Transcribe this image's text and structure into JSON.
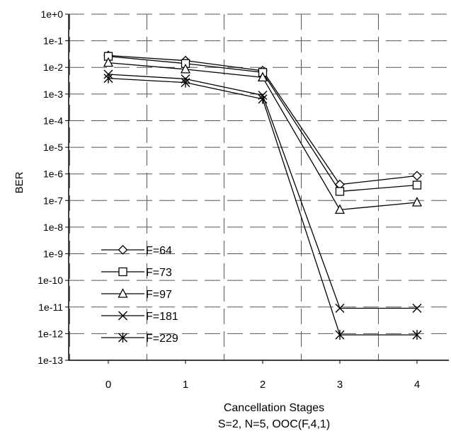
{
  "chart_data": {
    "type": "line",
    "title": "",
    "xlabel": "Cancellation Stages",
    "xlabel_sub": "S=2, N=5, OOC(F,4,1)",
    "ylabel": "BER",
    "y_scale": "log",
    "ylim": [
      1e-13,
      1
    ],
    "y_ticks": [
      "1e+0",
      "1e-1",
      "1e-2",
      "1e-3",
      "1e-4",
      "1e-5",
      "1e-6",
      "1e-7",
      "1e-8",
      "1e-9",
      "1e-10",
      "1e-11",
      "1e-12",
      "1e-13"
    ],
    "x": [
      0,
      1,
      2,
      3,
      4
    ],
    "x_ticks": [
      "0",
      "1",
      "2",
      "3",
      "4"
    ],
    "grid": true,
    "legend_position": "bottom-left",
    "series": [
      {
        "name": "F=64",
        "marker": "diamond",
        "values": [
          0.028,
          0.018,
          0.0075,
          4e-07,
          8.5e-07
        ]
      },
      {
        "name": "F=73",
        "marker": "square",
        "values": [
          0.026,
          0.014,
          0.0065,
          2.2e-07,
          3.8e-07
        ]
      },
      {
        "name": "F=97",
        "marker": "triangle",
        "values": [
          0.015,
          0.0085,
          0.0042,
          4.5e-08,
          8.5e-08
        ]
      },
      {
        "name": "F=181",
        "marker": "x",
        "values": [
          0.0055,
          0.0037,
          0.0009,
          9e-12,
          9e-12
        ]
      },
      {
        "name": "F=229",
        "marker": "star",
        "values": [
          0.0039,
          0.0027,
          0.00065,
          9e-13,
          9e-13
        ]
      }
    ]
  }
}
